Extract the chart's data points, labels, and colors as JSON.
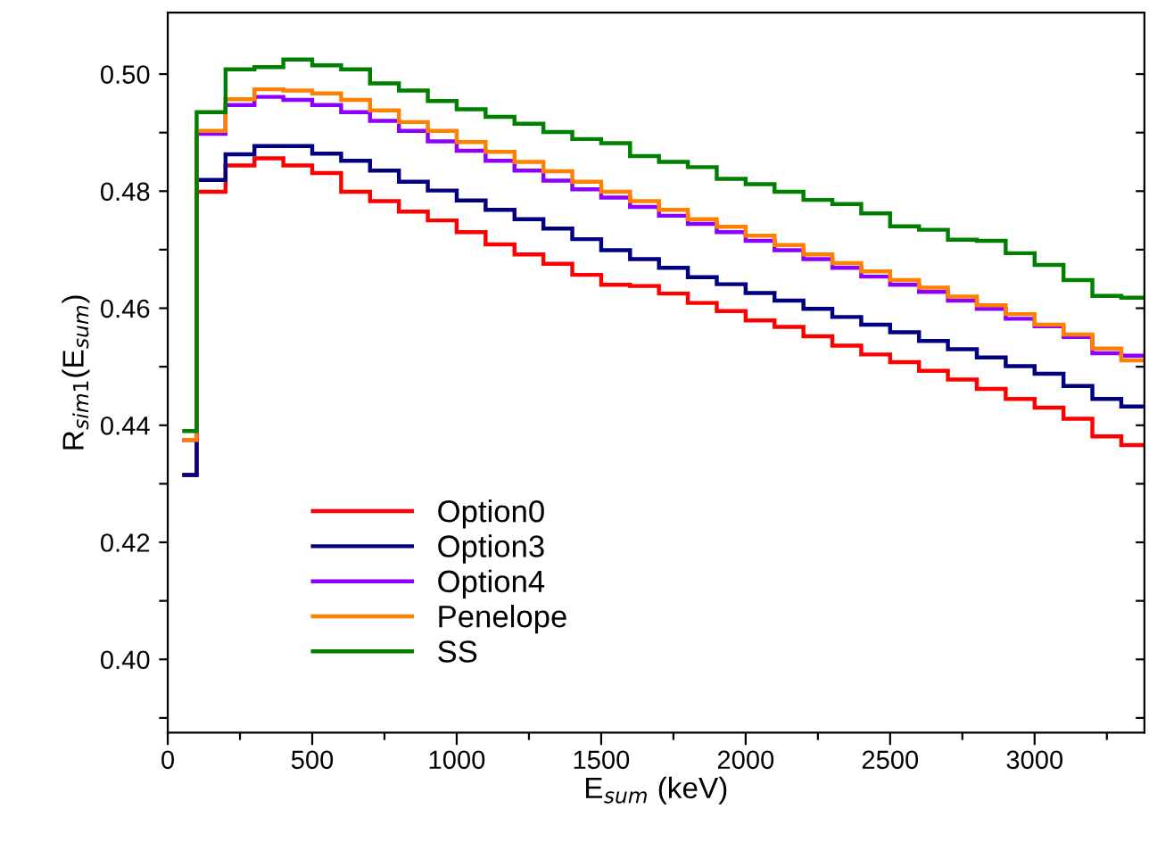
{
  "chart_data": {
    "type": "histogram",
    "xlabel": "E$_{sum}$ (keV)",
    "ylabel": "R$_{sim1}$(E$_{sum}$)",
    "bins": [
      50,
      100,
      200,
      300,
      400,
      500,
      600,
      700,
      800,
      900,
      1000,
      1100,
      1200,
      1300,
      1400,
      1500,
      1600,
      1700,
      1800,
      1900,
      2000,
      2100,
      2200,
      2300,
      2400,
      2500,
      2600,
      2700,
      2800,
      2900,
      3000,
      3100,
      3200,
      3300,
      3400
    ],
    "xlim": [
      0,
      3380
    ],
    "ylim": [
      0.3875,
      0.5105
    ],
    "xticks": [
      0,
      {
        "value": 250,
        "label": null
      },
      500,
      {
        "value": 750,
        "label": null
      },
      1000,
      {
        "value": 1250,
        "label": null
      },
      1500,
      {
        "value": 1750,
        "label": null
      },
      2000,
      {
        "value": 2250,
        "label": null
      },
      2500,
      {
        "value": 2750,
        "label": null
      },
      3000,
      {
        "value": 3250,
        "label": null
      }
    ],
    "yticks": [
      {
        "value": 0.39,
        "label": null
      },
      {
        "value": 0.4,
        "label": "0.40"
      },
      {
        "value": 0.41,
        "label": null
      },
      {
        "value": 0.42,
        "label": "0.42"
      },
      {
        "value": 0.43,
        "label": null
      },
      {
        "value": 0.44,
        "label": "0.44"
      },
      {
        "value": 0.45,
        "label": null
      },
      {
        "value": 0.46,
        "label": "0.46"
      },
      {
        "value": 0.47,
        "label": null
      },
      {
        "value": 0.48,
        "label": "0.48"
      },
      {
        "value": 0.49,
        "label": null
      },
      {
        "value": 0.5,
        "label": "0.50"
      }
    ],
    "legend": "bottom left",
    "grid": false,
    "series": [
      {
        "name": "Option0",
        "color": "#ff0000",
        "values": [
          0.4315,
          0.4799,
          0.4844,
          0.4856,
          0.4844,
          0.4831,
          0.4799,
          0.4783,
          0.4765,
          0.475,
          0.473,
          0.4709,
          0.4692,
          0.4676,
          0.4657,
          0.464,
          0.4638,
          0.4625,
          0.4609,
          0.4595,
          0.4579,
          0.4568,
          0.4552,
          0.4536,
          0.4521,
          0.4508,
          0.4493,
          0.4478,
          0.4462,
          0.4445,
          0.443,
          0.4411,
          0.4381,
          0.4366
        ]
      },
      {
        "name": "Option3",
        "color": "#000080",
        "values": [
          0.4315,
          0.4819,
          0.4863,
          0.4877,
          0.4877,
          0.4864,
          0.4852,
          0.4835,
          0.4816,
          0.4801,
          0.4784,
          0.4768,
          0.4752,
          0.4736,
          0.4718,
          0.4699,
          0.4684,
          0.4669,
          0.4653,
          0.4641,
          0.4626,
          0.4613,
          0.4599,
          0.4585,
          0.4572,
          0.4559,
          0.4544,
          0.453,
          0.4516,
          0.4501,
          0.4488,
          0.4467,
          0.4445,
          0.4432
        ]
      },
      {
        "name": "Option4",
        "color": "#8b00ff",
        "values": [
          0.4375,
          0.4898,
          0.4947,
          0.4961,
          0.4956,
          0.4947,
          0.4935,
          0.492,
          0.4903,
          0.4885,
          0.4869,
          0.4852,
          0.4835,
          0.4818,
          0.4803,
          0.4789,
          0.4773,
          0.4758,
          0.4744,
          0.473,
          0.4715,
          0.4699,
          0.4684,
          0.4669,
          0.4654,
          0.464,
          0.4628,
          0.4613,
          0.4599,
          0.4582,
          0.4569,
          0.4551,
          0.4523,
          0.4519
        ]
      },
      {
        "name": "Penelope",
        "color": "#ff8000",
        "values": [
          0.4375,
          0.4903,
          0.4957,
          0.4974,
          0.4972,
          0.4967,
          0.4956,
          0.4938,
          0.4918,
          0.4903,
          0.4884,
          0.4867,
          0.485,
          0.4834,
          0.4816,
          0.4799,
          0.4783,
          0.4768,
          0.4752,
          0.4739,
          0.4724,
          0.4708,
          0.4692,
          0.4677,
          0.4663,
          0.4648,
          0.4635,
          0.462,
          0.4605,
          0.459,
          0.4572,
          0.4555,
          0.4531,
          0.4511
        ]
      },
      {
        "name": "SS",
        "color": "#008000",
        "values": [
          0.439,
          0.4935,
          0.5008,
          0.5012,
          0.5025,
          0.5015,
          0.5008,
          0.4984,
          0.4972,
          0.4954,
          0.494,
          0.4927,
          0.4915,
          0.4901,
          0.4889,
          0.4882,
          0.486,
          0.485,
          0.4841,
          0.4821,
          0.4812,
          0.4799,
          0.4785,
          0.4778,
          0.4762,
          0.474,
          0.4734,
          0.4717,
          0.4715,
          0.4694,
          0.4674,
          0.4648,
          0.4621,
          0.4618
        ]
      }
    ]
  }
}
